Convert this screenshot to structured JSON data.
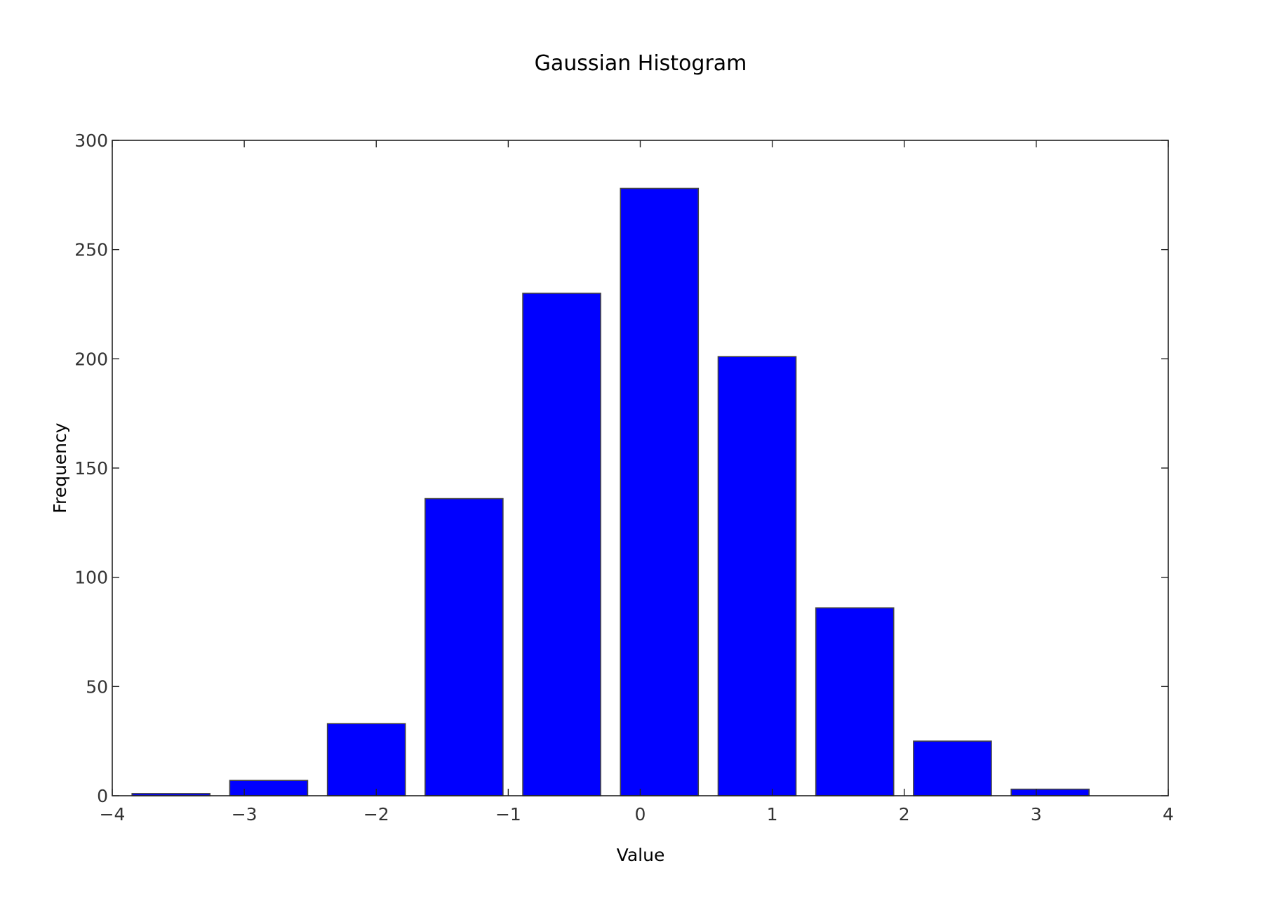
{
  "chart_data": {
    "type": "bar",
    "title": "Gaussian Histogram",
    "xlabel": "Value",
    "ylabel": "Frequency",
    "xlim": [
      -4,
      4
    ],
    "ylim": [
      0,
      300
    ],
    "x_ticks": [
      -4,
      -3,
      -2,
      -1,
      0,
      1,
      2,
      3,
      4
    ],
    "x_tick_labels": [
      "−4",
      "−3",
      "−2",
      "−1",
      "0",
      "1",
      "2",
      "3",
      "4"
    ],
    "y_ticks": [
      0,
      50,
      100,
      150,
      200,
      250,
      300
    ],
    "y_tick_labels": [
      "0",
      "50",
      "100",
      "150",
      "200",
      "250",
      "300"
    ],
    "bins": [
      {
        "start": -3.85,
        "end": -3.26,
        "value": 1
      },
      {
        "start": -3.11,
        "end": -2.52,
        "value": 7
      },
      {
        "start": -2.37,
        "end": -1.78,
        "value": 33
      },
      {
        "start": -1.63,
        "end": -1.04,
        "value": 136
      },
      {
        "start": -0.89,
        "end": -0.3,
        "value": 230
      },
      {
        "start": -0.15,
        "end": 0.44,
        "value": 278
      },
      {
        "start": 0.59,
        "end": 1.18,
        "value": 201
      },
      {
        "start": 1.33,
        "end": 1.92,
        "value": 86
      },
      {
        "start": 2.07,
        "end": 2.66,
        "value": 25
      },
      {
        "start": 2.81,
        "end": 3.4,
        "value": 3
      }
    ],
    "bar_color": "#0000ff",
    "bar_edge_color": "#444444",
    "grid": false,
    "legend": "none"
  }
}
